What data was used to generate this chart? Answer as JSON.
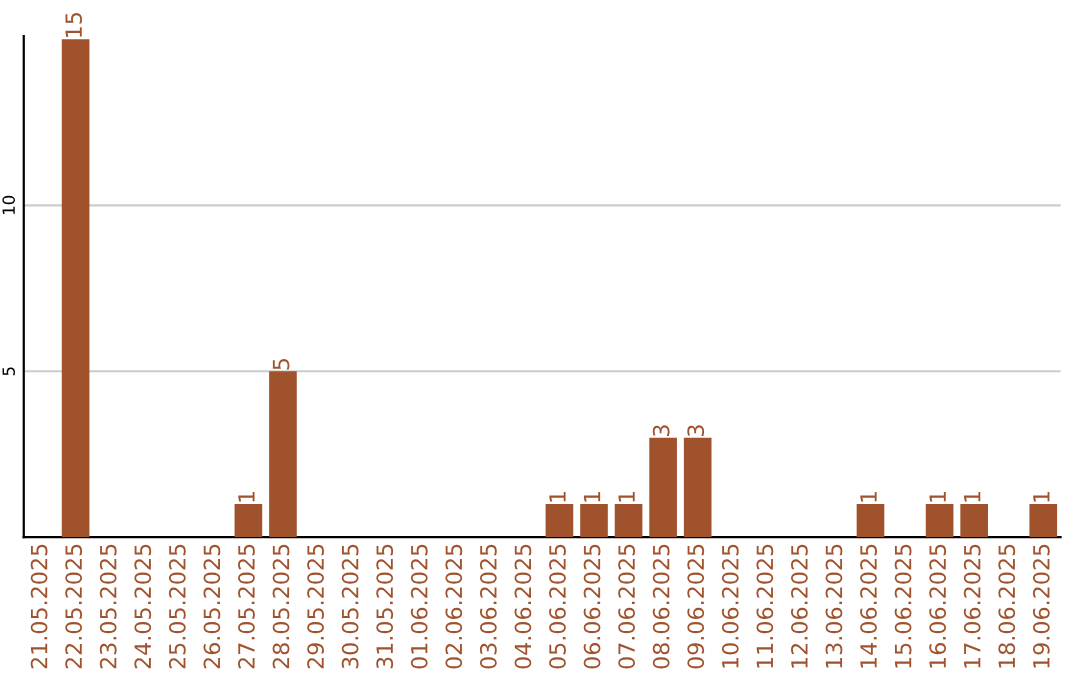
{
  "chart_data": {
    "type": "bar",
    "categories": [
      "21.05.2025",
      "22.05.2025",
      "23.05.2025",
      "24.05.2025",
      "25.05.2025",
      "26.05.2025",
      "27.05.2025",
      "28.05.2025",
      "29.05.2025",
      "30.05.2025",
      "31.05.2025",
      "01.06.2025",
      "02.06.2025",
      "03.06.2025",
      "04.06.2025",
      "05.06.2025",
      "06.06.2025",
      "07.06.2025",
      "08.06.2025",
      "09.06.2025",
      "10.06.2025",
      "11.06.2025",
      "12.06.2025",
      "13.06.2025",
      "14.06.2025",
      "15.06.2025",
      "16.06.2025",
      "17.06.2025",
      "18.06.2025",
      "19.06.2025"
    ],
    "values": [
      0,
      15,
      0,
      0,
      0,
      0,
      1,
      5,
      0,
      0,
      0,
      0,
      0,
      0,
      0,
      1,
      1,
      1,
      3,
      3,
      0,
      0,
      0,
      0,
      1,
      0,
      1,
      1,
      0,
      1
    ],
    "value_labels": [
      null,
      "15",
      null,
      null,
      null,
      null,
      "1",
      "5",
      null,
      null,
      null,
      null,
      null,
      null,
      null,
      "1",
      "1",
      "1",
      "3",
      "3",
      null,
      null,
      null,
      null,
      "1",
      null,
      "1",
      "1",
      null,
      "1"
    ],
    "color": "#a0522d",
    "ylim": [
      0,
      15.1
    ],
    "yticks": [
      5,
      10
    ],
    "grid": "y"
  }
}
